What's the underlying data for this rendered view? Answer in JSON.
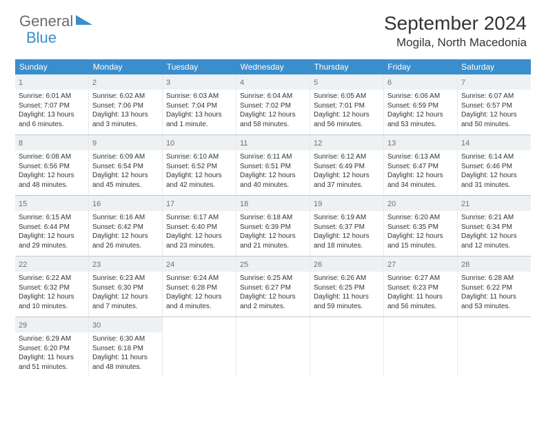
{
  "brand": {
    "name1": "General",
    "name2": "Blue"
  },
  "title": "September 2024",
  "location": "Mogila, North Macedonia",
  "colors": {
    "header_bg": "#3a8ecb",
    "header_text": "#ffffff",
    "daynum_bg": "#eef1f3",
    "week_border": "#bfc9d0",
    "body_text": "#333333",
    "logo_gray": "#6b6b6b"
  },
  "weekdays": [
    "Sunday",
    "Monday",
    "Tuesday",
    "Wednesday",
    "Thursday",
    "Friday",
    "Saturday"
  ],
  "weeks": [
    [
      {
        "num": "1",
        "sunrise": "6:01 AM",
        "sunset": "7:07 PM",
        "daylight": "13 hours and 6 minutes."
      },
      {
        "num": "2",
        "sunrise": "6:02 AM",
        "sunset": "7:06 PM",
        "daylight": "13 hours and 3 minutes."
      },
      {
        "num": "3",
        "sunrise": "6:03 AM",
        "sunset": "7:04 PM",
        "daylight": "13 hours and 1 minute."
      },
      {
        "num": "4",
        "sunrise": "6:04 AM",
        "sunset": "7:02 PM",
        "daylight": "12 hours and 58 minutes."
      },
      {
        "num": "5",
        "sunrise": "6:05 AM",
        "sunset": "7:01 PM",
        "daylight": "12 hours and 56 minutes."
      },
      {
        "num": "6",
        "sunrise": "6:06 AM",
        "sunset": "6:59 PM",
        "daylight": "12 hours and 53 minutes."
      },
      {
        "num": "7",
        "sunrise": "6:07 AM",
        "sunset": "6:57 PM",
        "daylight": "12 hours and 50 minutes."
      }
    ],
    [
      {
        "num": "8",
        "sunrise": "6:08 AM",
        "sunset": "6:56 PM",
        "daylight": "12 hours and 48 minutes."
      },
      {
        "num": "9",
        "sunrise": "6:09 AM",
        "sunset": "6:54 PM",
        "daylight": "12 hours and 45 minutes."
      },
      {
        "num": "10",
        "sunrise": "6:10 AM",
        "sunset": "6:52 PM",
        "daylight": "12 hours and 42 minutes."
      },
      {
        "num": "11",
        "sunrise": "6:11 AM",
        "sunset": "6:51 PM",
        "daylight": "12 hours and 40 minutes."
      },
      {
        "num": "12",
        "sunrise": "6:12 AM",
        "sunset": "6:49 PM",
        "daylight": "12 hours and 37 minutes."
      },
      {
        "num": "13",
        "sunrise": "6:13 AM",
        "sunset": "6:47 PM",
        "daylight": "12 hours and 34 minutes."
      },
      {
        "num": "14",
        "sunrise": "6:14 AM",
        "sunset": "6:46 PM",
        "daylight": "12 hours and 31 minutes."
      }
    ],
    [
      {
        "num": "15",
        "sunrise": "6:15 AM",
        "sunset": "6:44 PM",
        "daylight": "12 hours and 29 minutes."
      },
      {
        "num": "16",
        "sunrise": "6:16 AM",
        "sunset": "6:42 PM",
        "daylight": "12 hours and 26 minutes."
      },
      {
        "num": "17",
        "sunrise": "6:17 AM",
        "sunset": "6:40 PM",
        "daylight": "12 hours and 23 minutes."
      },
      {
        "num": "18",
        "sunrise": "6:18 AM",
        "sunset": "6:39 PM",
        "daylight": "12 hours and 21 minutes."
      },
      {
        "num": "19",
        "sunrise": "6:19 AM",
        "sunset": "6:37 PM",
        "daylight": "12 hours and 18 minutes."
      },
      {
        "num": "20",
        "sunrise": "6:20 AM",
        "sunset": "6:35 PM",
        "daylight": "12 hours and 15 minutes."
      },
      {
        "num": "21",
        "sunrise": "6:21 AM",
        "sunset": "6:34 PM",
        "daylight": "12 hours and 12 minutes."
      }
    ],
    [
      {
        "num": "22",
        "sunrise": "6:22 AM",
        "sunset": "6:32 PM",
        "daylight": "12 hours and 10 minutes."
      },
      {
        "num": "23",
        "sunrise": "6:23 AM",
        "sunset": "6:30 PM",
        "daylight": "12 hours and 7 minutes."
      },
      {
        "num": "24",
        "sunrise": "6:24 AM",
        "sunset": "6:28 PM",
        "daylight": "12 hours and 4 minutes."
      },
      {
        "num": "25",
        "sunrise": "6:25 AM",
        "sunset": "6:27 PM",
        "daylight": "12 hours and 2 minutes."
      },
      {
        "num": "26",
        "sunrise": "6:26 AM",
        "sunset": "6:25 PM",
        "daylight": "11 hours and 59 minutes."
      },
      {
        "num": "27",
        "sunrise": "6:27 AM",
        "sunset": "6:23 PM",
        "daylight": "11 hours and 56 minutes."
      },
      {
        "num": "28",
        "sunrise": "6:28 AM",
        "sunset": "6:22 PM",
        "daylight": "11 hours and 53 minutes."
      }
    ],
    [
      {
        "num": "29",
        "sunrise": "6:29 AM",
        "sunset": "6:20 PM",
        "daylight": "11 hours and 51 minutes."
      },
      {
        "num": "30",
        "sunrise": "6:30 AM",
        "sunset": "6:18 PM",
        "daylight": "11 hours and 48 minutes."
      },
      null,
      null,
      null,
      null,
      null
    ]
  ],
  "labels": {
    "sunrise": "Sunrise:",
    "sunset": "Sunset:",
    "daylight": "Daylight:"
  }
}
